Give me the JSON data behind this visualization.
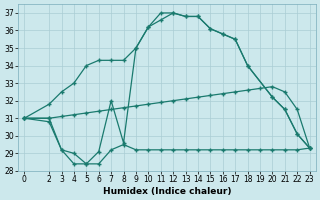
{
  "bg_color": "#cce8ec",
  "grid_color": "#aacdd4",
  "line_color": "#1a7a6e",
  "xlabel": "Humidex (Indice chaleur)",
  "ylim": [
    28,
    37.5
  ],
  "xlim": [
    -0.5,
    23.5
  ],
  "yticks": [
    28,
    29,
    30,
    31,
    32,
    33,
    34,
    35,
    36,
    37
  ],
  "xticks": [
    0,
    2,
    3,
    4,
    5,
    6,
    7,
    8,
    9,
    10,
    11,
    12,
    13,
    14,
    15,
    16,
    17,
    18,
    19,
    20,
    21,
    22,
    23
  ],
  "line1_x": [
    0,
    2,
    3,
    4,
    5,
    6,
    7,
    8,
    9,
    10,
    11,
    12,
    13,
    14,
    15,
    16,
    17,
    18,
    20,
    21,
    22,
    23
  ],
  "line1_y": [
    31.0,
    30.8,
    29.2,
    28.4,
    28.4,
    29.1,
    32.0,
    29.6,
    35.0,
    36.2,
    37.0,
    37.0,
    36.8,
    36.8,
    36.1,
    35.8,
    35.5,
    34.0,
    32.2,
    31.5,
    30.1,
    29.3
  ],
  "line2_x": [
    0,
    2,
    3,
    4,
    5,
    6,
    7,
    8,
    9,
    10,
    11,
    12,
    13,
    14,
    15,
    16,
    17,
    18,
    20,
    21,
    22,
    23
  ],
  "line2_y": [
    31.0,
    31.8,
    32.5,
    33.0,
    34.0,
    34.3,
    34.3,
    34.3,
    35.0,
    36.2,
    36.6,
    37.0,
    36.8,
    36.8,
    36.1,
    35.8,
    35.5,
    34.0,
    32.2,
    31.5,
    30.1,
    29.3
  ],
  "line3_x": [
    0,
    2,
    3,
    4,
    5,
    6,
    7,
    8,
    9,
    10,
    11,
    12,
    13,
    14,
    15,
    16,
    17,
    18,
    19,
    20,
    21,
    22,
    23
  ],
  "line3_y": [
    31.0,
    31.0,
    29.2,
    29.0,
    28.4,
    28.4,
    29.2,
    29.5,
    29.2,
    29.2,
    29.2,
    29.2,
    29.2,
    29.2,
    29.2,
    29.2,
    29.2,
    29.2,
    29.2,
    29.2,
    29.2,
    29.2,
    29.3
  ],
  "line4_x": [
    0,
    2,
    3,
    4,
    5,
    6,
    7,
    8,
    9,
    10,
    11,
    12,
    13,
    14,
    15,
    16,
    17,
    18,
    19,
    20,
    21,
    22,
    23
  ],
  "line4_y": [
    31.0,
    31.0,
    31.1,
    31.2,
    31.3,
    31.4,
    31.5,
    31.6,
    31.7,
    31.8,
    31.9,
    32.0,
    32.1,
    32.2,
    32.3,
    32.4,
    32.5,
    32.6,
    32.7,
    32.8,
    32.5,
    31.5,
    29.3
  ]
}
